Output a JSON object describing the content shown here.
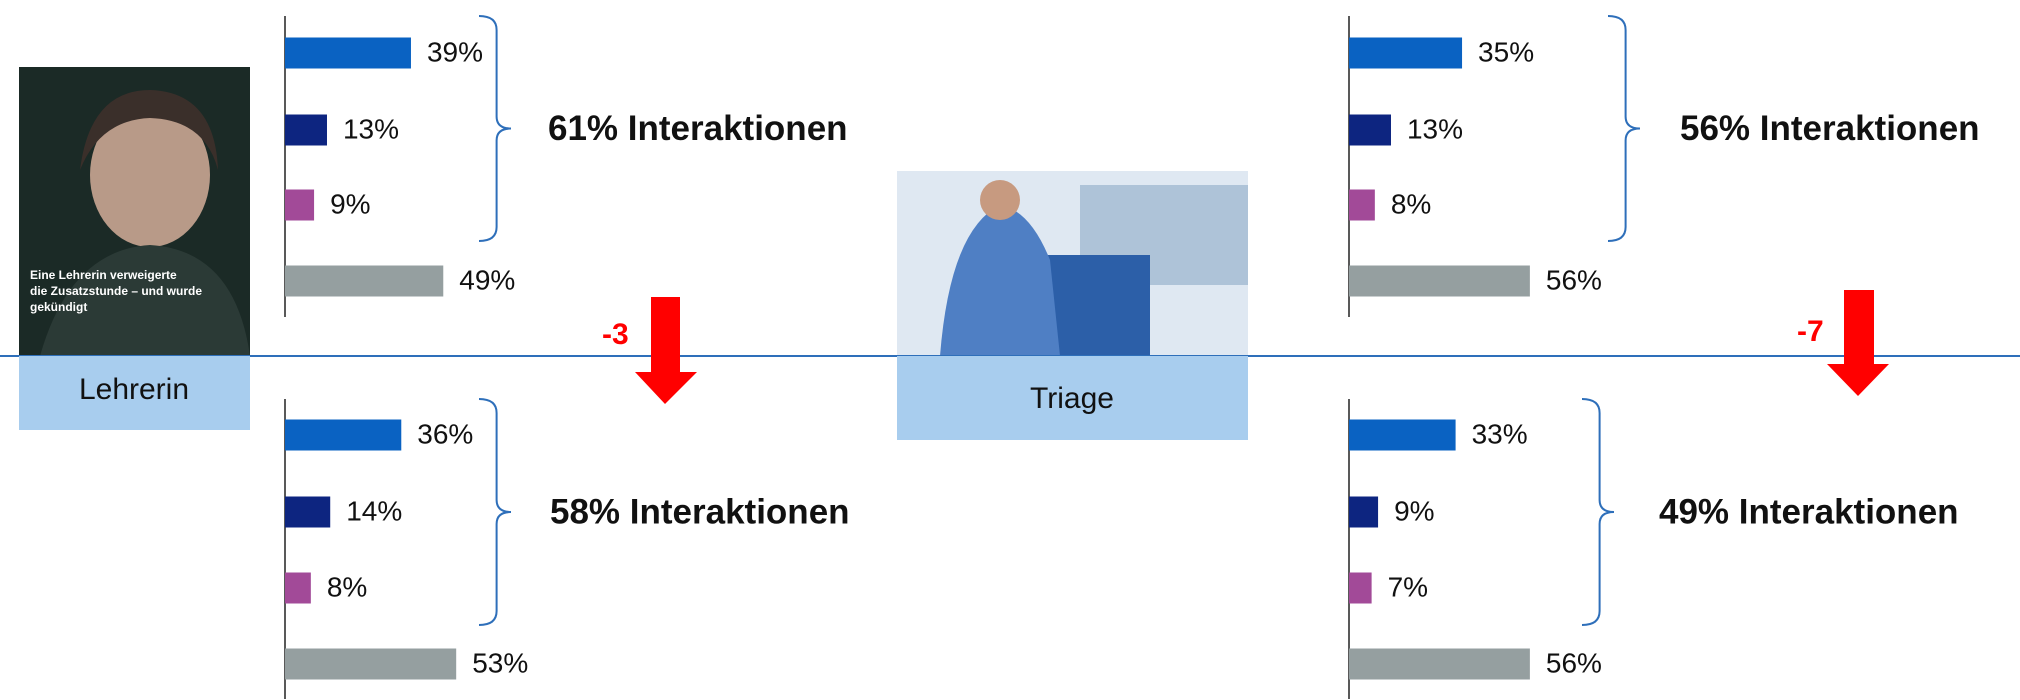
{
  "chart_data": [
    {
      "type": "bar",
      "values": [
        39,
        13,
        9,
        49
      ],
      "value_labels": [
        "39%",
        "13%",
        "9%",
        "49%"
      ],
      "colors": [
        "#0a62c2",
        "#0d2580",
        "#a24a98",
        "#959fa0"
      ],
      "annotation": "61% Interaktionen"
    },
    {
      "type": "bar",
      "values": [
        35,
        13,
        8,
        56
      ],
      "value_labels": [
        "35%",
        "13%",
        "8%",
        "56%"
      ],
      "colors": [
        "#0a62c2",
        "#0d2580",
        "#a24a98",
        "#959fa0"
      ],
      "annotation": "56% Interaktionen"
    },
    {
      "type": "bar",
      "values": [
        36,
        14,
        8,
        53
      ],
      "value_labels": [
        "36%",
        "14%",
        "8%",
        "53%"
      ],
      "colors": [
        "#0a62c2",
        "#0d2580",
        "#a24a98",
        "#959fa0"
      ],
      "annotation": "58% Interaktionen"
    },
    {
      "type": "bar",
      "values": [
        33,
        9,
        7,
        56
      ],
      "value_labels": [
        "33%",
        "9%",
        "7%",
        "56%"
      ],
      "colors": [
        "#0a62c2",
        "#0d2580",
        "#a24a98",
        "#959fa0"
      ],
      "annotation": "49% Interaktionen"
    }
  ],
  "panels": [
    {
      "label": "Lehrerin",
      "change": "-3",
      "headline": [
        "Eine Lehrerin verweigerte",
        "die Zusatzstunde – und wurde",
        "gekündigt"
      ]
    },
    {
      "label": "Triage",
      "change": "-7"
    }
  ]
}
